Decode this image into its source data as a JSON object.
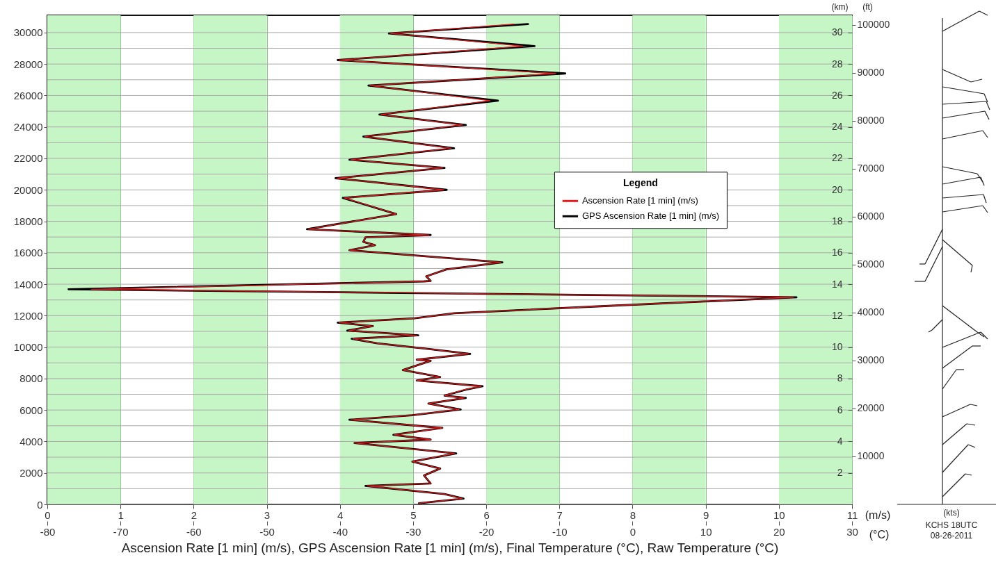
{
  "chart_data": {
    "type": "line",
    "xlabel": "Ascension Rate [1 min] (m/s), GPS Ascension Rate [1 min] (m/s), Final Temperature (°C), Raw Temperature (°C)",
    "ylabel": null,
    "y2label": "(km)",
    "y3label": "(ft)",
    "legend_title": "Legend",
    "legend": "right",
    "grid": true,
    "line_style": "solid",
    "marker": "none",
    "xlim": [
      0,
      11
    ],
    "xticks": [
      0,
      1,
      2,
      3,
      4,
      5,
      6,
      7,
      8,
      9,
      10,
      11
    ],
    "x2lim": [
      -80,
      30
    ],
    "x2ticks": [
      -80,
      -70,
      -60,
      -50,
      -40,
      -30,
      -20,
      -10,
      0,
      10,
      20,
      30
    ],
    "ylim": [
      0,
      31100
    ],
    "yticks": [
      0,
      {
        "value": 1000,
        "label": null
      },
      2000,
      {
        "value": 3000,
        "label": null
      },
      4000,
      {
        "value": 5000,
        "label": null
      },
      6000,
      {
        "value": 7000,
        "label": null
      },
      8000,
      {
        "value": 9000,
        "label": null
      },
      10000,
      {
        "value": 11000,
        "label": null
      },
      12000,
      {
        "value": 13000,
        "label": null
      },
      14000,
      {
        "value": 15000,
        "label": null
      },
      16000,
      {
        "value": 17000,
        "label": null
      },
      18000,
      {
        "value": 19000,
        "label": null
      },
      20000,
      {
        "value": 21000,
        "label": null
      },
      22000,
      {
        "value": 23000,
        "label": null
      },
      24000,
      {
        "value": 25000,
        "label": null
      },
      26000,
      {
        "value": 27000,
        "label": null
      },
      28000,
      {
        "value": 29000,
        "label": null
      },
      30000
    ],
    "y2lim": [
      0,
      31.1
    ],
    "y2ticks": [
      2,
      4,
      6,
      8,
      10,
      12,
      14,
      16,
      18,
      20,
      22,
      24,
      26,
      28,
      30
    ],
    "y3lim": [
      0,
      102000
    ],
    "y3ticks": [
      10000,
      20000,
      30000,
      40000,
      50000,
      60000,
      70000,
      80000,
      90000,
      100000
    ],
    "bands": [
      {
        "axis": "x",
        "from": 0,
        "to": 1,
        "color": "#c6f5c6"
      },
      {
        "axis": "x",
        "from": 2,
        "to": 3,
        "color": "#c6f5c6"
      },
      {
        "axis": "x",
        "from": 4,
        "to": 5,
        "color": "#c6f5c6"
      },
      {
        "axis": "x",
        "from": 6,
        "to": 7,
        "color": "#c6f5c6"
      },
      {
        "axis": "x",
        "from": 8,
        "to": 9,
        "color": "#c6f5c6"
      },
      {
        "axis": "x",
        "from": 10,
        "to": 11,
        "color": "#c6f5c6"
      }
    ],
    "annotations": [
      "(m/s)",
      "(°C)",
      "(kts)",
      "KCHS  18UTC",
      "08-26-2011"
    ],
    "series": [
      {
        "name": "Ascension Rate [1 min] (m/s)",
        "color": "#e31a1c",
        "x": [
          5.08,
          5.67,
          5.43,
          4.37,
          5.24,
          5.15,
          5.37,
          4.99,
          5.57,
          4.2,
          5.24,
          4.74,
          5.4,
          4.15,
          4.99,
          5.63,
          5.21,
          5.7,
          5.43,
          5.7,
          5.93,
          5.05,
          5.37,
          4.86,
          5.24,
          5.05,
          5.76,
          5.24,
          4.51,
          4.18,
          5.05,
          4.12,
          4.45,
          3.99,
          5.02,
          5.56,
          7.5,
          10.2,
          0.6,
          5.15,
          5.24,
          5.18,
          5.46,
          6.2,
          4.13,
          4.48,
          4.32,
          4.35,
          5.22,
          3.57,
          4.77,
          4.06,
          5.42,
          3.96,
          5.41,
          4.15,
          5.52,
          4.34,
          5.68,
          4.56,
          6.05,
          4.41,
          6.95,
          3.99,
          6.5,
          4.69,
          6.38
        ],
        "values": [
          70,
          370,
          660,
          1180,
          1330,
          1840,
          2280,
          2720,
          3240,
          3900,
          4120,
          4420,
          4860,
          5380,
          5670,
          6040,
          6410,
          6770,
          6920,
          7290,
          7510,
          7880,
          8100,
          8540,
          9130,
          9200,
          9570,
          9870,
          10240,
          10530,
          10750,
          11050,
          11340,
          11560,
          11830,
          12150,
          12590,
          13170,
          13680,
          14180,
          14210,
          14500,
          14950,
          15390,
          16160,
          16480,
          16690,
          16980,
          17130,
          17500,
          18460,
          19490,
          20000,
          20740,
          21400,
          21920,
          22650,
          23390,
          24130,
          24790,
          25670,
          26630,
          27400,
          28250,
          29140,
          29950,
          30540
        ]
      },
      {
        "name": "GPS Ascension Rate [1 min] (m/s)",
        "color": "#000000",
        "x": [
          5.08,
          5.69,
          5.43,
          4.35,
          5.24,
          5.15,
          5.37,
          4.99,
          5.59,
          4.2,
          5.24,
          4.73,
          5.4,
          4.13,
          4.99,
          5.65,
          5.21,
          5.72,
          5.43,
          5.72,
          5.95,
          5.05,
          5.37,
          4.86,
          5.24,
          5.05,
          5.78,
          5.24,
          4.51,
          4.16,
          5.07,
          4.1,
          4.45,
          3.97,
          5.02,
          5.56,
          7.52,
          10.24,
          0.29,
          5.15,
          5.24,
          5.18,
          5.46,
          6.22,
          4.13,
          4.48,
          4.32,
          4.35,
          5.24,
          3.55,
          4.77,
          4.04,
          5.46,
          3.94,
          5.43,
          4.13,
          5.56,
          4.32,
          5.72,
          4.54,
          6.16,
          4.39,
          7.08,
          3.97,
          6.66,
          4.67,
          6.57
        ],
        "values": [
          70,
          370,
          660,
          1180,
          1330,
          1840,
          2280,
          2720,
          3240,
          3900,
          4120,
          4420,
          4860,
          5380,
          5670,
          6040,
          6410,
          6770,
          6920,
          7290,
          7510,
          7880,
          8100,
          8540,
          9130,
          9200,
          9570,
          9870,
          10240,
          10530,
          10750,
          11050,
          11340,
          11560,
          11830,
          12150,
          12590,
          13170,
          13680,
          14180,
          14210,
          14500,
          14950,
          15390,
          16160,
          16480,
          16690,
          16980,
          17130,
          17500,
          18460,
          19490,
          20000,
          20740,
          21400,
          21920,
          22650,
          23390,
          24130,
          24790,
          25670,
          26630,
          27400,
          28250,
          29140,
          29950,
          30540
        ]
      }
    ]
  }
}
